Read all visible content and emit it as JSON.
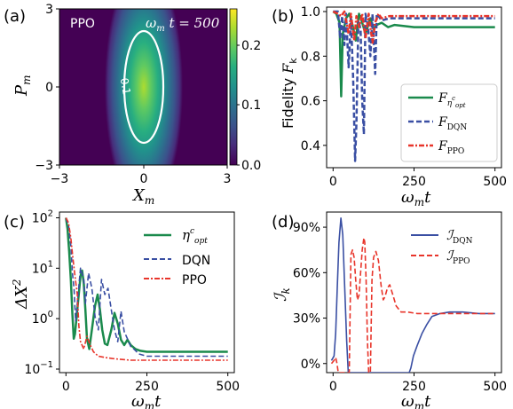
{
  "figure": {
    "panels": [
      "(a)",
      "(b)",
      "(c)",
      "(d)"
    ]
  },
  "chart_data": [
    {
      "panel": "(a)",
      "type": "heatmap",
      "title_left": "PPO",
      "title_right": "ω_m t = 500",
      "xlabel": "X_m",
      "ylabel": "P_m",
      "xlim": [
        -3,
        3
      ],
      "ylim": [
        -3,
        3
      ],
      "xticks": [
        "−3",
        "0",
        "3"
      ],
      "yticks": [
        "3",
        "0",
        "−3"
      ],
      "colorbar_ticks": [
        "0.0",
        "0.1",
        "0.2"
      ],
      "colorbar_max": 0.26,
      "contour_label": "0.1",
      "distribution": {
        "center_x": 0.0,
        "center_y": 0.0,
        "sigma_x": 0.36,
        "sigma_y": 1.25,
        "peak": 0.26,
        "contour_level": 0.1
      },
      "colors": {
        "low": "#440154",
        "mid": "#21918c",
        "high": "#fde725"
      }
    },
    {
      "panel": "(b)",
      "type": "line",
      "xlabel": "ω_m t",
      "ylabel": "Fidelity F_k",
      "xlim": [
        -20,
        520
      ],
      "ylim": [
        0.3,
        1.02
      ],
      "xticks": [
        "0",
        "250",
        "500"
      ],
      "yticks": [
        "0.4",
        "0.6",
        "0.8",
        "1.0"
      ],
      "legend": [
        "F_η_opt^c",
        "F_DQN",
        "F_PPO"
      ],
      "legend_position": "lower-right",
      "series": [
        {
          "name": "F_η_opt^c",
          "color": "#1a8a4c",
          "style": "solid",
          "points": [
            [
              0,
              1.0
            ],
            [
              10,
              0.99
            ],
            [
              20,
              0.95
            ],
            [
              25,
              0.62
            ],
            [
              30,
              0.9
            ],
            [
              40,
              0.97
            ],
            [
              50,
              0.99
            ],
            [
              60,
              0.94
            ],
            [
              70,
              0.87
            ],
            [
              80,
              0.99
            ],
            [
              90,
              0.95
            ],
            [
              100,
              0.9
            ],
            [
              115,
              0.97
            ],
            [
              125,
              0.92
            ],
            [
              135,
              0.94
            ],
            [
              150,
              0.95
            ],
            [
              170,
              0.93
            ],
            [
              190,
              0.94
            ],
            [
              250,
              0.93
            ],
            [
              500,
              0.93
            ]
          ]
        },
        {
          "name": "F_DQN",
          "color": "#3a4fa3",
          "style": "dashed",
          "points": [
            [
              0,
              1.0
            ],
            [
              15,
              1.0
            ],
            [
              22,
              0.88
            ],
            [
              28,
              0.98
            ],
            [
              35,
              0.85
            ],
            [
              40,
              0.99
            ],
            [
              48,
              0.75
            ],
            [
              55,
              0.97
            ],
            [
              62,
              0.7
            ],
            [
              68,
              0.33
            ],
            [
              72,
              0.5
            ],
            [
              78,
              0.96
            ],
            [
              85,
              0.92
            ],
            [
              90,
              0.6
            ],
            [
              95,
              0.45
            ],
            [
              100,
              0.99
            ],
            [
              108,
              0.93
            ],
            [
              115,
              0.8
            ],
            [
              122,
              0.99
            ],
            [
              130,
              0.72
            ],
            [
              135,
              0.99
            ],
            [
              150,
              0.96
            ],
            [
              175,
              0.97
            ],
            [
              250,
              0.97
            ],
            [
              500,
              0.97
            ]
          ]
        },
        {
          "name": "F_PPO",
          "color": "#e8352b",
          "style": "dashdot",
          "points": [
            [
              0,
              1.0
            ],
            [
              15,
              0.99
            ],
            [
              25,
              0.98
            ],
            [
              35,
              1.0
            ],
            [
              48,
              0.9
            ],
            [
              55,
              0.99
            ],
            [
              65,
              0.87
            ],
            [
              72,
              0.98
            ],
            [
              80,
              0.93
            ],
            [
              90,
              0.99
            ],
            [
              100,
              0.88
            ],
            [
              110,
              0.99
            ],
            [
              122,
              0.86
            ],
            [
              130,
              0.95
            ],
            [
              140,
              0.99
            ],
            [
              150,
              0.97
            ],
            [
              175,
              0.98
            ],
            [
              250,
              0.98
            ],
            [
              500,
              0.98
            ]
          ]
        }
      ]
    },
    {
      "panel": "(c)",
      "type": "line",
      "xlabel": "ω_m t",
      "ylabel": "ΔX²",
      "yscale": "log",
      "xlim": [
        -20,
        520
      ],
      "ylim": [
        0.085,
        130
      ],
      "xticks": [
        "0",
        "250",
        "500"
      ],
      "yticks": [
        "10⁻¹",
        "10⁰",
        "10¹",
        "10²"
      ],
      "legend": [
        "η_opt^c",
        "DQN",
        "PPO"
      ],
      "legend_position": "upper-right",
      "series": [
        {
          "name": "η_opt^c",
          "color": "#1a8a4c",
          "style": "solid",
          "points": [
            [
              0,
              100
            ],
            [
              5,
              60
            ],
            [
              10,
              22
            ],
            [
              15,
              6
            ],
            [
              20,
              1.2
            ],
            [
              24,
              0.4
            ],
            [
              28,
              0.5
            ],
            [
              35,
              1.5
            ],
            [
              45,
              7
            ],
            [
              50,
              9
            ],
            [
              55,
              5
            ],
            [
              60,
              1.5
            ],
            [
              65,
              0.4
            ],
            [
              72,
              0.25
            ],
            [
              80,
              0.6
            ],
            [
              90,
              1.8
            ],
            [
              98,
              3
            ],
            [
              105,
              1.5
            ],
            [
              112,
              0.6
            ],
            [
              120,
              0.32
            ],
            [
              128,
              0.3
            ],
            [
              140,
              0.6
            ],
            [
              150,
              1.3
            ],
            [
              160,
              0.8
            ],
            [
              170,
              0.38
            ],
            [
              180,
              0.3
            ],
            [
              190,
              0.38
            ],
            [
              200,
              0.3
            ],
            [
              215,
              0.25
            ],
            [
              230,
              0.23
            ],
            [
              250,
              0.22
            ],
            [
              500,
              0.22
            ]
          ]
        },
        {
          "name": "DQN",
          "color": "#3a4fa3",
          "style": "dashed",
          "points": [
            [
              0,
              100
            ],
            [
              8,
              70
            ],
            [
              15,
              28
            ],
            [
              20,
              8
            ],
            [
              25,
              4
            ],
            [
              30,
              0.9
            ],
            [
              35,
              2
            ],
            [
              45,
              10
            ],
            [
              55,
              6
            ],
            [
              60,
              2
            ],
            [
              70,
              8
            ],
            [
              80,
              4
            ],
            [
              90,
              1.1
            ],
            [
              100,
              0.6
            ],
            [
              110,
              6
            ],
            [
              120,
              3
            ],
            [
              130,
              4
            ],
            [
              140,
              1.5
            ],
            [
              150,
              0.6
            ],
            [
              160,
              0.35
            ],
            [
              170,
              1.4
            ],
            [
              180,
              0.55
            ],
            [
              190,
              0.4
            ],
            [
              200,
              0.28
            ],
            [
              210,
              0.25
            ],
            [
              225,
              0.2
            ],
            [
              250,
              0.18
            ],
            [
              500,
              0.18
            ]
          ]
        },
        {
          "name": "PPO",
          "color": "#e8352b",
          "style": "dashdot",
          "points": [
            [
              0,
              100
            ],
            [
              8,
              80
            ],
            [
              15,
              40
            ],
            [
              22,
              15
            ],
            [
              28,
              7
            ],
            [
              35,
              3
            ],
            [
              40,
              0.7
            ],
            [
              45,
              0.35
            ],
            [
              55,
              0.25
            ],
            [
              65,
              0.45
            ],
            [
              75,
              0.3
            ],
            [
              85,
              0.22
            ],
            [
              100,
              0.18
            ],
            [
              120,
              0.17
            ],
            [
              150,
              0.16
            ],
            [
              200,
              0.15
            ],
            [
              250,
              0.15
            ],
            [
              500,
              0.15
            ]
          ]
        }
      ]
    },
    {
      "panel": "(d)",
      "type": "line",
      "xlabel": "ω_m t",
      "ylabel": "I_k",
      "xlim": [
        -20,
        520
      ],
      "ylim": [
        -0.06,
        1.0
      ],
      "xticks": [
        "0",
        "250",
        "500"
      ],
      "yticks": [
        "0%",
        "30%",
        "60%",
        "90%"
      ],
      "legend": [
        "I_DQN",
        "I_PPO"
      ],
      "legend_position": "upper-right",
      "series": [
        {
          "name": "I_DQN",
          "color": "#3a4fa3",
          "style": "solid",
          "points": [
            [
              -5,
              0.02
            ],
            [
              3,
              0.05
            ],
            [
              8,
              0.2
            ],
            [
              13,
              0.5
            ],
            [
              18,
              0.8
            ],
            [
              24,
              0.96
            ],
            [
              30,
              0.85
            ],
            [
              36,
              0.5
            ],
            [
              42,
              0.15
            ],
            [
              47,
              -0.06
            ],
            [
              235,
              -0.06
            ],
            [
              240,
              -0.03
            ],
            [
              248,
              0.05
            ],
            [
              260,
              0.12
            ],
            [
              275,
              0.2
            ],
            [
              290,
              0.26
            ],
            [
              305,
              0.31
            ],
            [
              330,
              0.33
            ],
            [
              360,
              0.34
            ],
            [
              400,
              0.34
            ],
            [
              450,
              0.33
            ],
            [
              500,
              0.33
            ]
          ]
        },
        {
          "name": "I_PPO",
          "color": "#e8352b",
          "style": "dashed",
          "points": [
            [
              -5,
              0.0
            ],
            [
              3,
              0.02
            ],
            [
              8,
              0.04
            ],
            [
              12,
              0.0
            ],
            [
              16,
              -0.06
            ],
            [
              50,
              -0.06
            ],
            [
              55,
              0.72
            ],
            [
              60,
              0.75
            ],
            [
              65,
              0.7
            ],
            [
              70,
              0.55
            ],
            [
              75,
              0.42
            ],
            [
              80,
              0.45
            ],
            [
              85,
              0.6
            ],
            [
              90,
              0.75
            ],
            [
              95,
              0.83
            ],
            [
              98,
              0.8
            ],
            [
              102,
              0.55
            ],
            [
              106,
              0.15
            ],
            [
              110,
              -0.06
            ],
            [
              115,
              -0.06
            ],
            [
              120,
              0.55
            ],
            [
              125,
              0.7
            ],
            [
              132,
              0.74
            ],
            [
              140,
              0.68
            ],
            [
              148,
              0.52
            ],
            [
              155,
              0.42
            ],
            [
              160,
              0.44
            ],
            [
              168,
              0.5
            ],
            [
              175,
              0.52
            ],
            [
              185,
              0.45
            ],
            [
              195,
              0.38
            ],
            [
              210,
              0.34
            ],
            [
              230,
              0.34
            ],
            [
              260,
              0.33
            ],
            [
              300,
              0.33
            ],
            [
              350,
              0.33
            ],
            [
              400,
              0.33
            ],
            [
              450,
              0.33
            ],
            [
              500,
              0.33
            ]
          ]
        }
      ]
    }
  ]
}
